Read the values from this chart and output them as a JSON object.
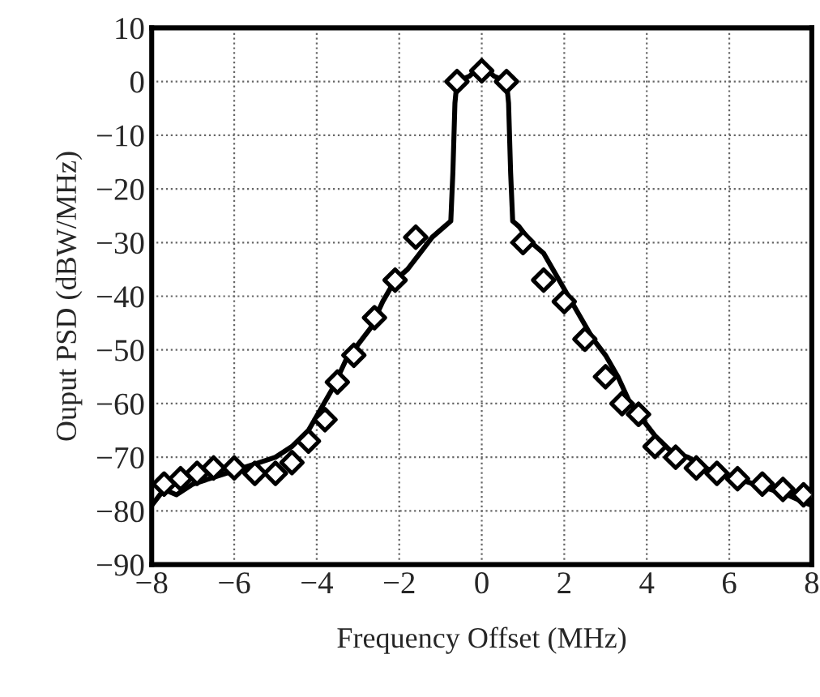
{
  "chart_data": {
    "type": "line",
    "xlabel": "Frequency Offset (MHz)",
    "ylabel": "Ouput PSD (dBW/MHz)",
    "xlim": [
      -8,
      8
    ],
    "ylim": [
      -90,
      10
    ],
    "xticks": [
      {
        "value": -8,
        "label": "−8"
      },
      {
        "value": -6,
        "label": "−6"
      },
      {
        "value": -4,
        "label": "−4"
      },
      {
        "value": -2,
        "label": "−2"
      },
      0,
      2,
      4,
      6,
      8
    ],
    "yticks": [
      {
        "value": -90,
        "label": "−90"
      },
      {
        "value": -80,
        "label": "−80"
      },
      {
        "value": -70,
        "label": "−70"
      },
      {
        "value": -60,
        "label": "−60"
      },
      {
        "value": -50,
        "label": "−50"
      },
      {
        "value": -40,
        "label": "−40"
      },
      {
        "value": -30,
        "label": "−30"
      },
      {
        "value": -20,
        "label": "−20"
      },
      {
        "value": -10,
        "label": "−10"
      },
      0,
      10
    ],
    "grid": true,
    "series": [
      {
        "color": "#000000",
        "marker": "none",
        "line_style": "solid",
        "x": [
          -8,
          -7.7,
          -7.4,
          -7,
          -6.6,
          -6.2,
          -5.8,
          -5.4,
          -5,
          -4.6,
          -4.2,
          -3.9,
          -3.6,
          -3.3,
          -3,
          -2.7,
          -2.4,
          -2.1,
          -1.8,
          -1.5,
          -1.2,
          -0.9,
          -0.75,
          -0.7,
          -0.65,
          -0.6,
          -0.3,
          0,
          0.3,
          0.6,
          0.65,
          0.7,
          0.75,
          0.9,
          1.2,
          1.5,
          1.8,
          2.1,
          2.4,
          2.7,
          3,
          3.3,
          3.6,
          3.9,
          4.2,
          4.6,
          5,
          5.4,
          5.8,
          6.2,
          6.6,
          7,
          7.4,
          7.7,
          8
        ],
        "values": [
          -79,
          -76,
          -77,
          -75,
          -74,
          -73,
          -72,
          -71,
          -70,
          -68,
          -65,
          -61,
          -57,
          -52,
          -49,
          -46,
          -41,
          -37,
          -35,
          -32,
          -29,
          -27,
          -26,
          -17,
          -4,
          0,
          1,
          3,
          1,
          0,
          -4,
          -17,
          -26,
          -27,
          -30,
          -32,
          -36,
          -40,
          -44,
          -48,
          -51,
          -55,
          -60,
          -63,
          -66,
          -69,
          -70,
          -72,
          -73,
          -74,
          -75,
          -76,
          -77,
          -78,
          -79
        ]
      },
      {
        "type": "scatter",
        "color": "#000000",
        "marker": "diamond",
        "x": [
          -7.7,
          -7.3,
          -6.9,
          -6.5,
          -6,
          -5.5,
          -5,
          -4.6,
          -4.2,
          -3.8,
          -3.5,
          -3.1,
          -2.6,
          -2.1,
          -1.6,
          -0.6,
          0,
          0.6,
          1,
          1.5,
          2,
          2.5,
          3,
          3.4,
          3.8,
          4.2,
          4.7,
          5.2,
          5.7,
          6.2,
          6.8,
          7.3,
          7.8
        ],
        "values": [
          -75,
          -74,
          -73,
          -72,
          -72,
          -73,
          -73,
          -71,
          -67,
          -63,
          -56,
          -51,
          -44,
          -37,
          -29,
          0,
          2,
          0,
          -30,
          -37,
          -41,
          -48,
          -55,
          -60,
          -62,
          -68,
          -70,
          -72,
          -73,
          -74,
          -75,
          -76,
          -77
        ]
      }
    ]
  }
}
